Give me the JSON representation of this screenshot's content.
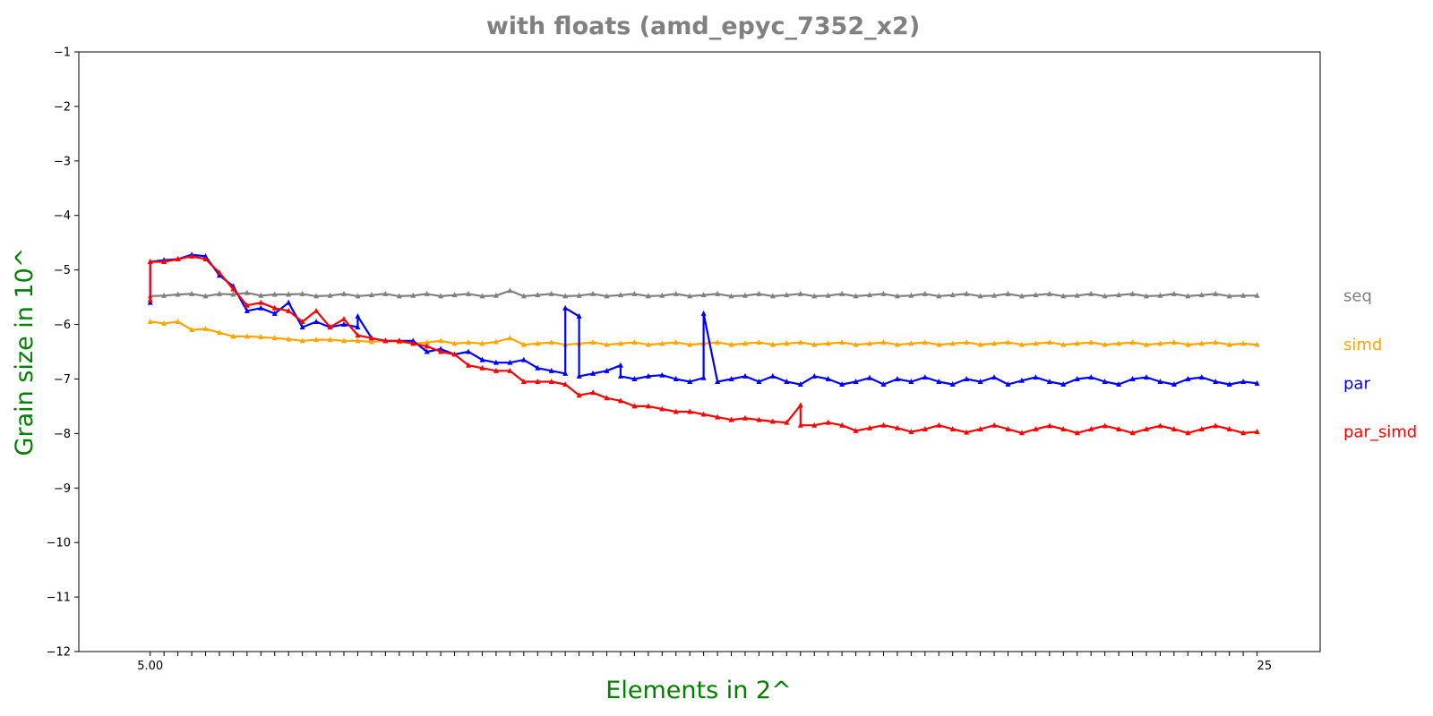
{
  "chart_data": {
    "type": "line",
    "title": "with floats  (amd_epyc_7352_x2)",
    "xlabel": "Elements in 2^",
    "ylabel": "Grain size in 10^",
    "ylim": [
      -12,
      -1
    ],
    "yticks": [
      -1,
      -2,
      -3,
      -4,
      -5,
      -6,
      -7,
      -8,
      -9,
      -10,
      -11,
      -12
    ],
    "ytick_labels": [
      "−1",
      "−2",
      "−3",
      "−4",
      "−5",
      "−6",
      "−7",
      "−8",
      "−9",
      "−10",
      "−11",
      "−12"
    ],
    "x_first_label": "5.00",
    "x_last_label": "25",
    "xlim": [
      3.71,
      26.14
    ],
    "grid": false,
    "legend": "right, labels at line ends",
    "colors": {
      "title": "#808080",
      "axis_labels": "#008000"
    },
    "series": [
      {
        "name": "seq",
        "color": "#808080",
        "x": [
          5.0,
          5.25,
          5.5,
          5.75,
          6.0,
          6.25,
          6.5,
          6.75,
          7.0,
          7.25,
          7.5,
          7.75,
          8.0,
          8.25,
          8.5,
          8.75,
          9.0,
          9.25,
          9.5,
          9.75,
          10.0,
          10.25,
          10.5,
          10.75,
          11.0,
          11.25,
          11.5,
          11.75,
          12.0,
          12.25,
          12.5,
          12.75,
          13.0,
          13.25,
          13.5,
          13.75,
          14.0,
          14.25,
          14.5,
          14.75,
          15.0,
          15.25,
          15.5,
          15.75,
          16.0,
          16.25,
          16.5,
          16.75,
          17.0,
          17.25,
          17.5,
          17.75,
          18.0,
          18.25,
          18.5,
          18.75,
          19.0,
          19.25,
          19.5,
          19.75,
          20.0,
          20.25,
          20.5,
          20.75,
          21.0,
          21.25,
          21.5,
          21.75,
          22.0,
          22.25,
          22.5,
          22.75,
          23.0,
          23.25,
          23.5,
          23.75,
          24.0,
          24.25,
          24.5,
          24.75,
          25.0
        ],
        "y": [
          -5.48,
          -5.47,
          -5.45,
          -5.44,
          -5.48,
          -5.44,
          -5.45,
          -5.42,
          -5.47,
          -5.45,
          -5.45,
          -5.44,
          -5.48,
          -5.47,
          -5.44,
          -5.48,
          -5.46,
          -5.44,
          -5.48,
          -5.47,
          -5.44,
          -5.48,
          -5.46,
          -5.44,
          -5.48,
          -5.47,
          -5.38,
          -5.48,
          -5.46,
          -5.44,
          -5.48,
          -5.47,
          -5.44,
          -5.48,
          -5.46,
          -5.44,
          -5.48,
          -5.47,
          -5.44,
          -5.48,
          -5.46,
          -5.44,
          -5.48,
          -5.47,
          -5.44,
          -5.48,
          -5.46,
          -5.44,
          -5.48,
          -5.47,
          -5.44,
          -5.48,
          -5.46,
          -5.44,
          -5.48,
          -5.47,
          -5.44,
          -5.48,
          -5.46,
          -5.44,
          -5.48,
          -5.47,
          -5.44,
          -5.48,
          -5.46,
          -5.44,
          -5.48,
          -5.47,
          -5.44,
          -5.48,
          -5.46,
          -5.44,
          -5.48,
          -5.47,
          -5.44,
          -5.48,
          -5.46,
          -5.44,
          -5.48,
          -5.47,
          -5.47
        ]
      },
      {
        "name": "simd",
        "color": "#ffa500",
        "x": [
          5.0,
          5.25,
          5.5,
          5.75,
          6.0,
          6.25,
          6.5,
          6.75,
          7.0,
          7.25,
          7.5,
          7.75,
          8.0,
          8.25,
          8.5,
          8.75,
          9.0,
          9.25,
          9.5,
          9.75,
          10.0,
          10.25,
          10.5,
          10.75,
          11.0,
          11.25,
          11.5,
          11.75,
          12.0,
          12.25,
          12.5,
          12.75,
          13.0,
          13.25,
          13.5,
          13.75,
          14.0,
          14.25,
          14.5,
          14.75,
          15.0,
          15.25,
          15.5,
          15.75,
          16.0,
          16.25,
          16.5,
          16.75,
          17.0,
          17.25,
          17.5,
          17.75,
          18.0,
          18.25,
          18.5,
          18.75,
          19.0,
          19.25,
          19.5,
          19.75,
          20.0,
          20.25,
          20.5,
          20.75,
          21.0,
          21.25,
          21.5,
          21.75,
          22.0,
          22.25,
          22.5,
          22.75,
          23.0,
          23.25,
          23.5,
          23.75,
          24.0,
          24.25,
          24.5,
          24.75,
          25.0
        ],
        "y": [
          -5.95,
          -5.98,
          -5.95,
          -6.1,
          -6.08,
          -6.15,
          -6.22,
          -6.22,
          -6.23,
          -6.25,
          -6.27,
          -6.3,
          -6.28,
          -6.28,
          -6.3,
          -6.3,
          -6.32,
          -6.3,
          -6.32,
          -6.35,
          -6.33,
          -6.3,
          -6.35,
          -6.33,
          -6.35,
          -6.32,
          -6.25,
          -6.37,
          -6.35,
          -6.33,
          -6.37,
          -6.35,
          -6.33,
          -6.37,
          -6.35,
          -6.33,
          -6.37,
          -6.35,
          -6.33,
          -6.37,
          -6.35,
          -6.33,
          -6.37,
          -6.35,
          -6.33,
          -6.37,
          -6.35,
          -6.33,
          -6.37,
          -6.35,
          -6.33,
          -6.37,
          -6.35,
          -6.33,
          -6.37,
          -6.35,
          -6.33,
          -6.37,
          -6.35,
          -6.33,
          -6.37,
          -6.35,
          -6.33,
          -6.37,
          -6.35,
          -6.33,
          -6.37,
          -6.35,
          -6.33,
          -6.37,
          -6.35,
          -6.33,
          -6.37,
          -6.35,
          -6.33,
          -6.37,
          -6.35,
          -6.33,
          -6.37,
          -6.35,
          -6.37
        ]
      },
      {
        "name": "par",
        "color": "#0000ff",
        "x": [
          5.0,
          5.0,
          5.25,
          5.5,
          5.75,
          6.0,
          6.25,
          6.5,
          6.75,
          7.0,
          7.25,
          7.5,
          7.75,
          8.0,
          8.25,
          8.5,
          8.75,
          8.75,
          9.0,
          9.25,
          9.5,
          9.75,
          10.0,
          10.25,
          10.5,
          10.75,
          11.0,
          11.25,
          11.5,
          11.75,
          12.0,
          12.25,
          12.5,
          12.5,
          12.75,
          12.75,
          13.0,
          13.25,
          13.5,
          13.5,
          13.75,
          14.0,
          14.25,
          14.5,
          14.75,
          15.0,
          15.0,
          15.25,
          15.5,
          15.75,
          16.0,
          16.25,
          16.5,
          16.75,
          17.0,
          17.25,
          17.5,
          17.75,
          18.0,
          18.25,
          18.5,
          18.75,
          19.0,
          19.25,
          19.5,
          19.75,
          20.0,
          20.25,
          20.5,
          20.75,
          21.0,
          21.25,
          21.5,
          21.75,
          22.0,
          22.25,
          22.5,
          22.75,
          23.0,
          23.25,
          23.5,
          23.75,
          24.0,
          24.25,
          24.5,
          24.75,
          25.0
        ],
        "y": [
          -5.6,
          -4.85,
          -4.82,
          -4.8,
          -4.72,
          -4.75,
          -5.1,
          -5.3,
          -5.75,
          -5.7,
          -5.8,
          -5.6,
          -6.05,
          -5.95,
          -6.05,
          -6.0,
          -6.05,
          -5.85,
          -6.25,
          -6.3,
          -6.3,
          -6.3,
          -6.5,
          -6.45,
          -6.55,
          -6.5,
          -6.65,
          -6.7,
          -6.7,
          -6.65,
          -6.8,
          -6.85,
          -6.9,
          -5.7,
          -5.85,
          -6.95,
          -6.9,
          -6.85,
          -6.75,
          -6.95,
          -7.0,
          -6.95,
          -6.93,
          -7.0,
          -7.05,
          -6.98,
          -5.8,
          -7.05,
          -7.0,
          -6.95,
          -7.05,
          -6.95,
          -7.05,
          -7.1,
          -6.95,
          -7.0,
          -7.1,
          -7.05,
          -6.98,
          -7.1,
          -7.0,
          -7.05,
          -6.97,
          -7.05,
          -7.1,
          -7.0,
          -7.05,
          -6.97,
          -7.1,
          -7.03,
          -6.97,
          -7.05,
          -7.1,
          -7.0,
          -6.97,
          -7.05,
          -7.1,
          -7.0,
          -6.97,
          -7.05,
          -7.1,
          -7.0,
          -6.97,
          -7.05,
          -7.1,
          -7.05,
          -7.08
        ]
      },
      {
        "name": "par_simd",
        "color": "#ff0000",
        "x": [
          5.0,
          5.0,
          5.25,
          5.5,
          5.75,
          6.0,
          6.25,
          6.5,
          6.75,
          7.0,
          7.25,
          7.5,
          7.75,
          8.0,
          8.25,
          8.5,
          8.75,
          9.0,
          9.25,
          9.5,
          9.75,
          10.0,
          10.25,
          10.5,
          10.75,
          11.0,
          11.25,
          11.5,
          11.75,
          12.0,
          12.25,
          12.5,
          12.75,
          13.0,
          13.25,
          13.5,
          13.75,
          14.0,
          14.25,
          14.5,
          14.75,
          15.0,
          15.25,
          15.5,
          15.75,
          16.0,
          16.25,
          16.5,
          16.75,
          16.75,
          17.0,
          17.25,
          17.5,
          17.75,
          18.0,
          18.25,
          18.5,
          18.75,
          19.0,
          19.25,
          19.5,
          19.75,
          20.0,
          20.25,
          20.5,
          20.75,
          21.0,
          21.25,
          21.5,
          21.75,
          22.0,
          22.25,
          22.5,
          22.75,
          23.0,
          23.25,
          23.5,
          23.75,
          24.0,
          24.25,
          24.5,
          24.75,
          25.0
        ],
        "y": [
          -5.55,
          -4.85,
          -4.85,
          -4.8,
          -4.75,
          -4.8,
          -5.05,
          -5.35,
          -5.65,
          -5.6,
          -5.7,
          -5.75,
          -5.95,
          -5.75,
          -6.05,
          -5.9,
          -6.2,
          -6.25,
          -6.3,
          -6.3,
          -6.35,
          -6.4,
          -6.5,
          -6.55,
          -6.75,
          -6.8,
          -6.85,
          -6.85,
          -7.05,
          -7.05,
          -7.05,
          -7.1,
          -7.3,
          -7.25,
          -7.35,
          -7.4,
          -7.5,
          -7.5,
          -7.55,
          -7.6,
          -7.6,
          -7.65,
          -7.7,
          -7.75,
          -7.72,
          -7.75,
          -7.78,
          -7.8,
          -7.48,
          -7.85,
          -7.85,
          -7.8,
          -7.85,
          -7.95,
          -7.9,
          -7.85,
          -7.9,
          -7.97,
          -7.92,
          -7.85,
          -7.92,
          -7.98,
          -7.92,
          -7.85,
          -7.92,
          -7.99,
          -7.92,
          -7.86,
          -7.92,
          -7.99,
          -7.92,
          -7.86,
          -7.92,
          -7.99,
          -7.92,
          -7.86,
          -7.92,
          -7.99,
          -7.92,
          -7.86,
          -7.92,
          -7.99,
          -7.97
        ]
      }
    ]
  }
}
